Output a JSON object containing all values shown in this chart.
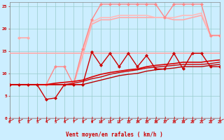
{
  "bg_color": "#cceeff",
  "grid_color": "#99cccc",
  "xlabel": "Vent moyen/en rafales ( km/h )",
  "xlabel_color": "#cc0000",
  "tick_color": "#cc0000",
  "xmin": 0,
  "xmax": 23,
  "ymin": 0,
  "ymax": 26,
  "yticks": [
    0,
    5,
    10,
    15,
    20,
    25
  ],
  "xticks": [
    0,
    1,
    2,
    3,
    4,
    5,
    6,
    7,
    8,
    9,
    10,
    11,
    12,
    13,
    14,
    15,
    16,
    17,
    18,
    19,
    20,
    21,
    22,
    23
  ],
  "line_flat14": {
    "x": [
      0,
      23
    ],
    "y": [
      14.5,
      14.5
    ],
    "color": "#ffaaaa",
    "lw": 1.2,
    "marker": null
  },
  "line_pink_rise1": {
    "x": [
      0,
      1,
      2,
      3,
      4,
      5,
      6,
      7,
      8,
      9,
      10,
      11,
      12,
      13,
      14,
      15,
      16,
      17,
      18,
      19,
      20,
      21,
      22,
      23
    ],
    "y": [
      7.5,
      7.5,
      7.5,
      7.5,
      7.5,
      7.5,
      7.5,
      7.5,
      14.0,
      21.0,
      22.0,
      22.0,
      22.5,
      22.5,
      22.5,
      22.5,
      22.5,
      22.5,
      22.0,
      22.0,
      22.5,
      23.0,
      18.5,
      18.5
    ],
    "color": "#ffaaaa",
    "lw": 1.2,
    "marker": null
  },
  "line_pink_rise2": {
    "x": [
      0,
      1,
      2,
      3,
      4,
      5,
      6,
      7,
      8,
      9,
      10,
      11,
      12,
      13,
      14,
      15,
      16,
      17,
      18,
      19,
      20,
      21,
      22,
      23
    ],
    "y": [
      7.5,
      7.5,
      7.5,
      7.5,
      7.5,
      7.5,
      7.5,
      7.5,
      15.0,
      21.5,
      22.5,
      22.5,
      23.0,
      23.0,
      23.0,
      23.0,
      22.5,
      22.5,
      22.5,
      23.0,
      23.0,
      23.5,
      18.5,
      18.5
    ],
    "color": "#ffbbbb",
    "lw": 1.2,
    "marker": null
  },
  "line_pink_diamonds": {
    "x": [
      0,
      1,
      2,
      3,
      4,
      5,
      6,
      7,
      8,
      9,
      10,
      11,
      12,
      13,
      14,
      15,
      16,
      17,
      18,
      19,
      20,
      21,
      22,
      23
    ],
    "y": [
      7.5,
      7.5,
      7.5,
      7.5,
      7.5,
      11.5,
      11.5,
      7.5,
      15.5,
      22.0,
      25.5,
      25.5,
      25.5,
      25.5,
      25.5,
      25.5,
      25.5,
      22.5,
      25.5,
      25.5,
      25.5,
      25.5,
      18.5,
      18.5
    ],
    "color": "#ff8888",
    "lw": 1.0,
    "marker": "D",
    "ms": 2.0
  },
  "line_pink_at2": {
    "x": [
      1,
      2
    ],
    "y": [
      18.0,
      18.0
    ],
    "color": "#ffaaaa",
    "lw": 1.2,
    "marker": "D",
    "ms": 2.0
  },
  "line_red1": {
    "x": [
      0,
      1,
      2,
      3,
      4,
      5,
      6,
      7,
      8,
      9,
      10,
      11,
      12,
      13,
      14,
      15,
      16,
      17,
      18,
      19,
      20,
      21,
      22,
      23
    ],
    "y": [
      7.5,
      7.5,
      7.5,
      7.5,
      7.5,
      7.5,
      7.5,
      7.5,
      7.5,
      8.0,
      8.5,
      9.0,
      9.5,
      9.8,
      10.0,
      10.5,
      10.8,
      11.0,
      11.2,
      11.5,
      11.5,
      11.5,
      11.8,
      12.0
    ],
    "color": "#bb0000",
    "lw": 1.0,
    "marker": null
  },
  "line_red2": {
    "x": [
      0,
      1,
      2,
      3,
      4,
      5,
      6,
      7,
      8,
      9,
      10,
      11,
      12,
      13,
      14,
      15,
      16,
      17,
      18,
      19,
      20,
      21,
      22,
      23
    ],
    "y": [
      7.5,
      7.5,
      7.5,
      7.5,
      7.5,
      7.5,
      7.5,
      7.8,
      8.2,
      8.8,
      9.2,
      9.8,
      10.2,
      10.5,
      10.8,
      11.2,
      11.4,
      11.6,
      11.8,
      12.0,
      12.0,
      12.0,
      12.2,
      12.5
    ],
    "color": "#cc0000",
    "lw": 1.0,
    "marker": null
  },
  "line_red3": {
    "x": [
      0,
      1,
      2,
      3,
      4,
      5,
      6,
      7,
      8,
      9,
      10,
      11,
      12,
      13,
      14,
      15,
      16,
      17,
      18,
      19,
      20,
      21,
      22,
      23
    ],
    "y": [
      7.5,
      7.5,
      7.5,
      7.5,
      7.5,
      7.8,
      8.0,
      8.2,
      8.5,
      9.2,
      9.8,
      10.2,
      10.5,
      10.8,
      11.0,
      11.5,
      11.8,
      12.0,
      12.2,
      12.5,
      12.5,
      12.5,
      12.8,
      13.0
    ],
    "color": "#dd0000",
    "lw": 1.2,
    "marker": null
  },
  "line_red_diamonds": {
    "x": [
      0,
      1,
      2,
      3,
      4,
      5,
      6,
      7,
      8,
      9,
      10,
      11,
      12,
      13,
      14,
      15,
      16,
      17,
      18,
      19,
      20,
      21,
      22,
      23
    ],
    "y": [
      7.5,
      7.5,
      7.5,
      7.5,
      4.2,
      4.5,
      7.5,
      7.5,
      7.5,
      14.8,
      11.8,
      14.5,
      11.5,
      14.5,
      11.5,
      14.0,
      11.0,
      11.0,
      14.5,
      11.0,
      14.5,
      14.5,
      11.5,
      11.5
    ],
    "color": "#cc0000",
    "lw": 1.0,
    "marker": "D",
    "ms": 2.0
  }
}
